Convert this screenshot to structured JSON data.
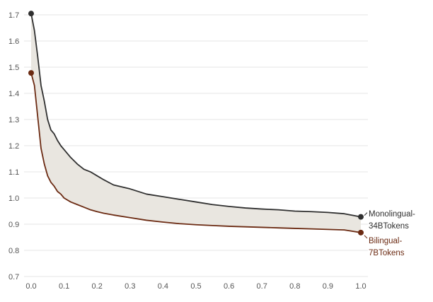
{
  "chart_data": {
    "type": "line",
    "title": "",
    "xlabel": "",
    "ylabel": "",
    "xlim": [
      0.0,
      1.0
    ],
    "ylim": [
      0.7,
      1.75
    ],
    "x_ticks": [
      "0.0",
      "0.1",
      "0.2",
      "0.3",
      "0.4",
      "0.5",
      "0.6",
      "0.7",
      "0.8",
      "0.9",
      "1.0"
    ],
    "y_ticks": [
      "0.7",
      "0.8",
      "0.9",
      "1.0",
      "1.1",
      "1.2",
      "1.3",
      "1.4",
      "1.5",
      "1.6",
      "1.7"
    ],
    "grid": "horizontal",
    "legend": "end-of-line labels",
    "fill_between_series": true,
    "colors": {
      "monolingual": "#2f2f2f",
      "bilingual": "#6b2a12",
      "fill": "#e9e6e0",
      "grid": "#e6e6e6"
    },
    "series": [
      {
        "key": "monolingual",
        "label_lines": [
          "Monolingual-",
          "34BTokens"
        ],
        "x": [
          0.0,
          0.01,
          0.02,
          0.03,
          0.04,
          0.05,
          0.06,
          0.07,
          0.08,
          0.09,
          0.1,
          0.12,
          0.14,
          0.16,
          0.18,
          0.2,
          0.22,
          0.25,
          0.3,
          0.35,
          0.4,
          0.45,
          0.5,
          0.55,
          0.6,
          0.65,
          0.7,
          0.75,
          0.8,
          0.85,
          0.9,
          0.95,
          1.0
        ],
        "y": [
          1.705,
          1.64,
          1.54,
          1.43,
          1.37,
          1.3,
          1.26,
          1.245,
          1.22,
          1.2,
          1.185,
          1.155,
          1.13,
          1.11,
          1.1,
          1.085,
          1.07,
          1.05,
          1.035,
          1.015,
          1.005,
          0.995,
          0.985,
          0.975,
          0.968,
          0.962,
          0.958,
          0.955,
          0.95,
          0.948,
          0.945,
          0.94,
          0.928
        ]
      },
      {
        "key": "bilingual",
        "label_lines": [
          "Bilingual-",
          "7BTokens"
        ],
        "x": [
          0.0,
          0.01,
          0.02,
          0.03,
          0.04,
          0.05,
          0.06,
          0.07,
          0.08,
          0.09,
          0.1,
          0.12,
          0.14,
          0.16,
          0.18,
          0.2,
          0.22,
          0.25,
          0.3,
          0.35,
          0.4,
          0.45,
          0.5,
          0.55,
          0.6,
          0.65,
          0.7,
          0.75,
          0.8,
          0.85,
          0.9,
          0.95,
          1.0
        ],
        "y": [
          1.478,
          1.43,
          1.31,
          1.19,
          1.13,
          1.085,
          1.06,
          1.045,
          1.025,
          1.015,
          1.0,
          0.985,
          0.975,
          0.965,
          0.955,
          0.948,
          0.942,
          0.935,
          0.925,
          0.915,
          0.908,
          0.902,
          0.898,
          0.895,
          0.892,
          0.89,
          0.888,
          0.886,
          0.884,
          0.882,
          0.88,
          0.878,
          0.868
        ]
      }
    ]
  }
}
